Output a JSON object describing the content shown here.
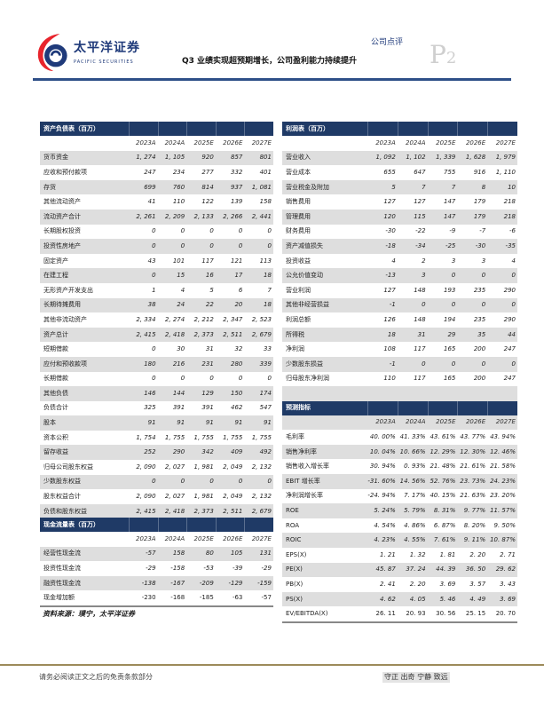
{
  "header": {
    "logo_cn": "太平洋证券",
    "logo_en": "PACIFIC SECURITIES",
    "doc_type": "公司点评",
    "title": "Q3 业绩实现超预期增长，公司盈利能力持续提升",
    "page_prefix": "P",
    "page_num": "2"
  },
  "colors": {
    "navy": "#1f3a66",
    "stripe": "#dedede",
    "logo_red": "#e8242c",
    "logo_blue": "#1f3a7a"
  },
  "balance": {
    "title": "资产负债表（百万）",
    "years": [
      "2023A",
      "2024A",
      "2025E",
      "2026E",
      "2027E"
    ],
    "rows": [
      [
        "货币资金",
        "1, 274",
        "1, 105",
        "920",
        "857",
        "801"
      ],
      [
        "应收和预付款项",
        "247",
        "234",
        "277",
        "332",
        "401"
      ],
      [
        "存货",
        "699",
        "760",
        "814",
        "937",
        "1, 081"
      ],
      [
        "其他流动资产",
        "41",
        "110",
        "122",
        "139",
        "158"
      ],
      [
        "流动资产合计",
        "2, 261",
        "2, 209",
        "2, 133",
        "2, 266",
        "2, 441"
      ],
      [
        "长期股权投资",
        "0",
        "0",
        "0",
        "0",
        "0"
      ],
      [
        "投资性房地产",
        "0",
        "0",
        "0",
        "0",
        "0"
      ],
      [
        "固定资产",
        "43",
        "101",
        "117",
        "121",
        "113"
      ],
      [
        "在建工程",
        "0",
        "15",
        "16",
        "17",
        "18"
      ],
      [
        "无形资产开发支出",
        "1",
        "4",
        "5",
        "6",
        "7"
      ],
      [
        "长期待摊费用",
        "38",
        "24",
        "22",
        "20",
        "18"
      ],
      [
        "其他非流动资产",
        "2, 334",
        "2, 274",
        "2, 212",
        "2, 347",
        "2, 523"
      ],
      [
        "资产总计",
        "2, 415",
        "2, 418",
        "2, 373",
        "2, 511",
        "2, 679"
      ],
      [
        "短期借款",
        "0",
        "30",
        "31",
        "32",
        "33"
      ],
      [
        "应付和预收款项",
        "180",
        "216",
        "231",
        "280",
        "339"
      ],
      [
        "长期借款",
        "0",
        "0",
        "0",
        "0",
        "0"
      ],
      [
        "其他负债",
        "146",
        "144",
        "129",
        "150",
        "174"
      ],
      [
        "负债合计",
        "325",
        "391",
        "391",
        "462",
        "547"
      ],
      [
        "股本",
        "91",
        "91",
        "91",
        "91",
        "91"
      ],
      [
        "资本公积",
        "1, 754",
        "1, 755",
        "1, 755",
        "1, 755",
        "1, 755"
      ],
      [
        "留存收益",
        "252",
        "290",
        "342",
        "409",
        "492"
      ],
      [
        "归母公司股东权益",
        "2, 090",
        "2, 027",
        "1, 981",
        "2, 049",
        "2, 132"
      ],
      [
        "少数股东权益",
        "0",
        "0",
        "0",
        "0",
        "0"
      ],
      [
        "股东权益合计",
        "2, 090",
        "2, 027",
        "1, 981",
        "2, 049",
        "2, 132"
      ],
      [
        "负债和股东权益",
        "2, 415",
        "2, 418",
        "2, 373",
        "2, 511",
        "2, 679"
      ]
    ]
  },
  "cashflow": {
    "title": "现金流量表（百万）",
    "years": [
      "2023A",
      "2024A",
      "2025E",
      "2026E",
      "2027E"
    ],
    "rows": [
      [
        "经营性现金流",
        "-57",
        "158",
        "80",
        "105",
        "131"
      ],
      [
        "投资性现金流",
        "-29",
        "-158",
        "-53",
        "-39",
        "-29"
      ],
      [
        "融资性现金流",
        "-138",
        "-167",
        "-209",
        "-129",
        "-159"
      ],
      [
        "现金增加额",
        "-230",
        "-168",
        "-185",
        "-63",
        "-57"
      ]
    ]
  },
  "income": {
    "title": "利润表（百万）",
    "years": [
      "2023A",
      "2024A",
      "2025E",
      "2026E",
      "2027E"
    ],
    "rows": [
      [
        "营业收入",
        "1, 092",
        "1, 102",
        "1, 339",
        "1, 628",
        "1, 979"
      ],
      [
        "营业成本",
        "655",
        "647",
        "755",
        "916",
        "1, 110"
      ],
      [
        "营业税金及附加",
        "5",
        "7",
        "7",
        "8",
        "10"
      ],
      [
        "销售费用",
        "127",
        "127",
        "147",
        "179",
        "218"
      ],
      [
        "管理费用",
        "120",
        "115",
        "147",
        "179",
        "218"
      ],
      [
        "财务费用",
        "-30",
        "-22",
        "-9",
        "-7",
        "-6"
      ],
      [
        "资产减值损失",
        "-18",
        "-34",
        "-25",
        "-30",
        "-35"
      ],
      [
        "投资收益",
        "4",
        "2",
        "3",
        "3",
        "4"
      ],
      [
        "公允价值变动",
        "-13",
        "3",
        "0",
        "0",
        "0"
      ],
      [
        "营业利润",
        "127",
        "148",
        "193",
        "235",
        "290"
      ],
      [
        "其他非经营损益",
        "-1",
        "0",
        "0",
        "0",
        "0"
      ],
      [
        "利润总额",
        "126",
        "148",
        "194",
        "235",
        "290"
      ],
      [
        "所得税",
        "18",
        "31",
        "29",
        "35",
        "44"
      ],
      [
        "净利润",
        "108",
        "117",
        "165",
        "200",
        "247"
      ],
      [
        "少数股东损益",
        "-1",
        "0",
        "0",
        "0",
        "0"
      ],
      [
        "归母股东净利润",
        "110",
        "117",
        "165",
        "200",
        "247"
      ]
    ]
  },
  "forecast": {
    "title": "预测指标",
    "years": [
      "2023A",
      "2024A",
      "2025E",
      "2026E",
      "2027E"
    ],
    "rows": [
      [
        "毛利率",
        "40. 00%",
        "41. 33%",
        "43. 61%",
        "43. 77%",
        "43. 94%"
      ],
      [
        "销售净利率",
        "10. 04%",
        "10. 66%",
        "12. 29%",
        "12. 30%",
        "12. 46%"
      ],
      [
        "销售收入增长率",
        "30. 94%",
        "0. 93%",
        "21. 48%",
        "21. 61%",
        "21. 58%"
      ],
      [
        "EBIT 增长率",
        "-31. 60%",
        "14. 56%",
        "52. 76%",
        "23. 73%",
        "24. 23%"
      ],
      [
        "净利润增长率",
        "-24. 94%",
        "7. 17%",
        "40. 15%",
        "21. 63%",
        "23. 20%"
      ],
      [
        "ROE",
        "5. 24%",
        "5. 79%",
        "8. 31%",
        "9. 77%",
        "11. 57%"
      ],
      [
        "ROA",
        "4. 54%",
        "4. 86%",
        "6. 87%",
        "8. 20%",
        "9. 50%"
      ],
      [
        "ROIC",
        "4. 23%",
        "4. 55%",
        "7. 61%",
        "9. 11%",
        "10. 87%"
      ],
      [
        "EPS(X)",
        "1. 21",
        "1. 32",
        "1. 81",
        "2. 20",
        "2. 71"
      ],
      [
        "PE(X)",
        "45. 87",
        "37. 24",
        "44. 39",
        "36. 50",
        "29. 62"
      ],
      [
        "PB(X)",
        "2. 41",
        "2. 20",
        "3. 69",
        "3. 57",
        "3. 43"
      ],
      [
        "PS(X)",
        "4. 62",
        "4. 05",
        "5. 46",
        "4. 49",
        "3. 69"
      ],
      [
        "EV/EBITDA(X)",
        "26. 11",
        "20. 93",
        "30. 56",
        "25. 15",
        "20. 70"
      ]
    ]
  },
  "source": "资料来源：璞宁，太平洋证券",
  "footer": {
    "disclaimer": "请务必阅读正文之后的免责条款部分",
    "motto": "守正 出奇 宁静 致远"
  }
}
